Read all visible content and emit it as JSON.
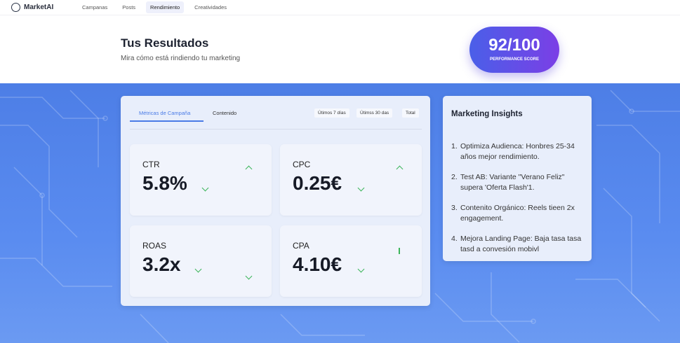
{
  "nav": {
    "logo": "MarketAI",
    "items": [
      "Campanas",
      "Posts",
      "Rendimiento",
      "Creatividades"
    ],
    "active": 2
  },
  "header": {
    "title": "Tus Resultados",
    "subtitle": "Mira cómo está rindiendo tu marketing"
  },
  "score": {
    "value": "92/100",
    "label": "PERFORMANCE SCORE"
  },
  "colors": {
    "accent": "#4a7be6",
    "positive": "#3cb55a",
    "score_gradient": [
      "#4a5fe8",
      "#7b3fe6"
    ]
  },
  "metrics_panel": {
    "tabs": [
      "Métricas de Campaña",
      "Contenido"
    ],
    "active_tab": 0,
    "filters": [
      "Útimos 7 días",
      "Útimss 30 das",
      "Total"
    ],
    "cards": [
      {
        "label": "CTR",
        "value": "5.8%"
      },
      {
        "label": "CPC",
        "value": "0.25€"
      },
      {
        "label": "ROAS",
        "value": "3.2x"
      },
      {
        "label": "CPA",
        "value": "4.10€"
      }
    ]
  },
  "insights": {
    "title": "Marketing Insights",
    "items": [
      "Optimiza Audienca: Honbres 25-34 años mejor rendimiento.",
      "Test AB: Variante \"Verano Feliz\" supera 'Oferta Flash'1.",
      "Contenito Orgánico: Reels tieen 2x engagement.",
      "Mejora Landing Page: Baja tasa tasa tasd a convesión mobivl"
    ]
  }
}
